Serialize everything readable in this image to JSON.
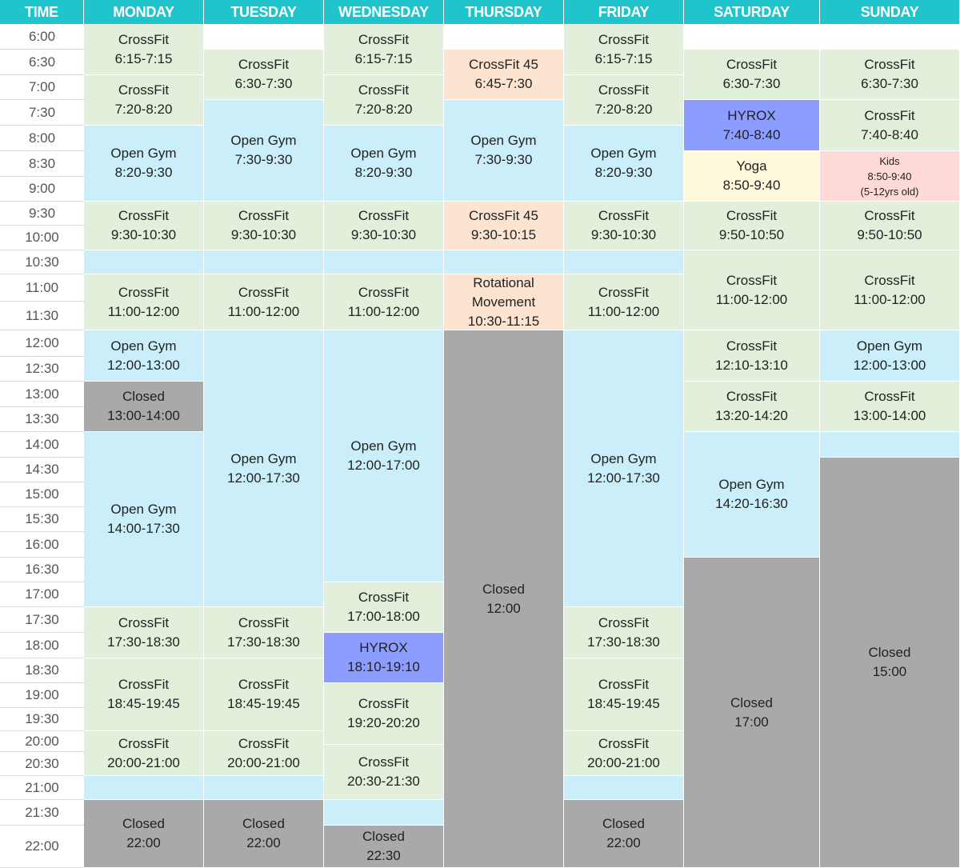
{
  "headers": [
    "TIME",
    "MONDAY",
    "TUESDAY",
    "WEDNESDAY",
    "THURSDAY",
    "FRIDAY",
    "SATURDAY",
    "SUNDAY"
  ],
  "times": [
    "6:00",
    "6:30",
    "7:00",
    "7:30",
    "8:00",
    "8:30",
    "9:00",
    "9:30",
    "10:00",
    "10:30",
    "11:00",
    "11:30",
    "12:00",
    "12:30",
    "13:00",
    "13:30",
    "14:00",
    "14:30",
    "15:00",
    "15:30",
    "16:00",
    "16:30",
    "17:00",
    "17:30",
    "18:00",
    "18:30",
    "19:00",
    "19:30",
    "20:00",
    "20:30",
    "21:00",
    "21:30",
    "22:00"
  ],
  "colors": {
    "header": "#1fc4cc",
    "crossfit": "#e2efda",
    "open_gym": "#cbeefb",
    "crossfit45": "#fce4d0",
    "hyrox": "#8c9cff",
    "yoga": "#fffadc",
    "kids": "#ffd8d8",
    "closed": "#a9a9a9",
    "empty": "#ffffff"
  },
  "days": [
    {
      "day": "MONDAY",
      "blocks": [
        {
          "name": "CrossFit",
          "time": "6:15-7:15",
          "kind": "crossfit",
          "start": "6:00",
          "end": "7:00"
        },
        {
          "name": "CrossFit",
          "time": "7:20-8:20",
          "kind": "crossfit",
          "start": "7:00",
          "end": "8:00"
        },
        {
          "name": "Open Gym",
          "time": "8:20-9:30",
          "kind": "open_gym",
          "start": "8:00",
          "end": "9:30"
        },
        {
          "name": "CrossFit",
          "time": "9:30-10:30",
          "kind": "crossfit",
          "start": "9:30",
          "end": "10:30"
        },
        {
          "name": "",
          "time": "",
          "kind": "open_gym",
          "start": "10:30",
          "end": "11:00"
        },
        {
          "name": "CrossFit",
          "time": "11:00-12:00",
          "kind": "crossfit",
          "start": "11:00",
          "end": "12:00"
        },
        {
          "name": "Open Gym",
          "time": "12:00-13:00",
          "kind": "open_gym",
          "start": "12:00",
          "end": "13:00"
        },
        {
          "name": "Closed",
          "time": "13:00-14:00",
          "kind": "closed",
          "start": "13:00",
          "end": "14:00"
        },
        {
          "name": "Open Gym",
          "time": "14:00-17:30",
          "kind": "open_gym",
          "start": "14:00",
          "end": "17:30"
        },
        {
          "name": "CrossFit",
          "time": "17:30-18:30",
          "kind": "crossfit",
          "start": "17:30",
          "end": "18:30"
        },
        {
          "name": "CrossFit",
          "time": "18:45-19:45",
          "kind": "crossfit",
          "start": "18:30",
          "end": "20:00"
        },
        {
          "name": "CrossFit",
          "time": "20:00-21:00",
          "kind": "crossfit",
          "start": "20:00",
          "end": "21:00"
        },
        {
          "name": "",
          "time": "",
          "kind": "open_gym",
          "start": "21:00",
          "end": "21:30"
        },
        {
          "name": "Closed",
          "time": "22:00",
          "kind": "closed",
          "start": "21:30",
          "end": "end"
        }
      ]
    },
    {
      "day": "TUESDAY",
      "blocks": [
        {
          "name": "",
          "time": "",
          "kind": "empty",
          "start": "6:00",
          "end": "6:30"
        },
        {
          "name": "CrossFit",
          "time": "6:30-7:30",
          "kind": "crossfit",
          "start": "6:30",
          "end": "7:30"
        },
        {
          "name": "Open Gym",
          "time": "7:30-9:30",
          "kind": "open_gym",
          "start": "7:30",
          "end": "9:30"
        },
        {
          "name": "CrossFit",
          "time": "9:30-10:30",
          "kind": "crossfit",
          "start": "9:30",
          "end": "10:30"
        },
        {
          "name": "",
          "time": "",
          "kind": "open_gym",
          "start": "10:30",
          "end": "11:00"
        },
        {
          "name": "CrossFit",
          "time": "11:00-12:00",
          "kind": "crossfit",
          "start": "11:00",
          "end": "12:00"
        },
        {
          "name": "Open Gym",
          "time": "12:00-17:30",
          "kind": "open_gym",
          "start": "12:00",
          "end": "17:30"
        },
        {
          "name": "CrossFit",
          "time": "17:30-18:30",
          "kind": "crossfit",
          "start": "17:30",
          "end": "18:30"
        },
        {
          "name": "CrossFit",
          "time": "18:45-19:45",
          "kind": "crossfit",
          "start": "18:30",
          "end": "20:00"
        },
        {
          "name": "CrossFit",
          "time": "20:00-21:00",
          "kind": "crossfit",
          "start": "20:00",
          "end": "21:00"
        },
        {
          "name": "",
          "time": "",
          "kind": "open_gym",
          "start": "21:00",
          "end": "21:30"
        },
        {
          "name": "Closed",
          "time": "22:00",
          "kind": "closed",
          "start": "21:30",
          "end": "end"
        }
      ]
    },
    {
      "day": "WEDNESDAY",
      "blocks": [
        {
          "name": "CrossFit",
          "time": "6:15-7:15",
          "kind": "crossfit",
          "start": "6:00",
          "end": "7:00"
        },
        {
          "name": "CrossFit",
          "time": "7:20-8:20",
          "kind": "crossfit",
          "start": "7:00",
          "end": "8:00"
        },
        {
          "name": "Open Gym",
          "time": "8:20-9:30",
          "kind": "open_gym",
          "start": "8:00",
          "end": "9:30"
        },
        {
          "name": "CrossFit",
          "time": "9:30-10:30",
          "kind": "crossfit",
          "start": "9:30",
          "end": "10:30"
        },
        {
          "name": "",
          "time": "",
          "kind": "open_gym",
          "start": "10:30",
          "end": "11:00"
        },
        {
          "name": "CrossFit",
          "time": "11:00-12:00",
          "kind": "crossfit",
          "start": "11:00",
          "end": "12:00"
        },
        {
          "name": "Open Gym",
          "time": "12:00-17:00",
          "kind": "open_gym",
          "start": "12:00",
          "end": "17:00"
        },
        {
          "name": "CrossFit",
          "time": "17:00-18:00",
          "kind": "crossfit",
          "start": "17:00",
          "end": "18:00"
        },
        {
          "name": "HYROX",
          "time": "18:10-19:10",
          "kind": "hyrox",
          "start": "18:00",
          "end": "19:00"
        },
        {
          "name": "CrossFit",
          "time": "19:20-20:20",
          "kind": "crossfit",
          "start": "19:00",
          "end": "20:20"
        },
        {
          "name": "CrossFit",
          "time": "20:30-21:30",
          "kind": "crossfit",
          "start": "20:20",
          "end": "21:30"
        },
        {
          "name": "",
          "time": "",
          "kind": "open_gym",
          "start": "21:30",
          "end": "22:00"
        },
        {
          "name": "Closed",
          "time": "22:30",
          "kind": "closed",
          "start": "22:00",
          "end": "end"
        }
      ]
    },
    {
      "day": "THURSDAY",
      "blocks": [
        {
          "name": "",
          "time": "",
          "kind": "empty",
          "start": "6:00",
          "end": "6:30"
        },
        {
          "name": "CrossFit 45",
          "time": "6:45-7:30",
          "kind": "crossfit45",
          "start": "6:30",
          "end": "7:30"
        },
        {
          "name": "Open Gym",
          "time": "7:30-9:30",
          "kind": "open_gym",
          "start": "7:30",
          "end": "9:30"
        },
        {
          "name": "CrossFit 45",
          "time": "9:30-10:15",
          "kind": "crossfit45",
          "start": "9:30",
          "end": "10:30"
        },
        {
          "name": "",
          "time": "",
          "kind": "open_gym",
          "start": "10:30",
          "end": "11:00"
        },
        {
          "name": "Rotational",
          "name2": "Movement",
          "time": "10:30-11:15",
          "kind": "crossfit45",
          "start": "11:00",
          "end": "12:00"
        },
        {
          "name": "Closed",
          "time": "12:00",
          "kind": "closed",
          "start": "12:00",
          "end": "end"
        }
      ]
    },
    {
      "day": "FRIDAY",
      "blocks": [
        {
          "name": "CrossFit",
          "time": "6:15-7:15",
          "kind": "crossfit",
          "start": "6:00",
          "end": "7:00"
        },
        {
          "name": "CrossFit",
          "time": "7:20-8:20",
          "kind": "crossfit",
          "start": "7:00",
          "end": "8:00"
        },
        {
          "name": "Open Gym",
          "time": "8:20-9:30",
          "kind": "open_gym",
          "start": "8:00",
          "end": "9:30"
        },
        {
          "name": "CrossFit",
          "time": "9:30-10:30",
          "kind": "crossfit",
          "start": "9:30",
          "end": "10:30"
        },
        {
          "name": "",
          "time": "",
          "kind": "open_gym",
          "start": "10:30",
          "end": "11:00"
        },
        {
          "name": "CrossFit",
          "time": "11:00-12:00",
          "kind": "crossfit",
          "start": "11:00",
          "end": "12:00"
        },
        {
          "name": "Open Gym",
          "time": "12:00-17:30",
          "kind": "open_gym",
          "start": "12:00",
          "end": "17:30"
        },
        {
          "name": "CrossFit",
          "time": "17:30-18:30",
          "kind": "crossfit",
          "start": "17:30",
          "end": "18:30"
        },
        {
          "name": "CrossFit",
          "time": "18:45-19:45",
          "kind": "crossfit",
          "start": "18:30",
          "end": "20:00"
        },
        {
          "name": "CrossFit",
          "time": "20:00-21:00",
          "kind": "crossfit",
          "start": "20:00",
          "end": "21:00"
        },
        {
          "name": "",
          "time": "",
          "kind": "open_gym",
          "start": "21:00",
          "end": "21:30"
        },
        {
          "name": "Closed",
          "time": "22:00",
          "kind": "closed",
          "start": "21:30",
          "end": "end"
        }
      ]
    },
    {
      "day": "SATURDAY",
      "blocks": [
        {
          "name": "",
          "time": "",
          "kind": "empty",
          "start": "6:00",
          "end": "6:30"
        },
        {
          "name": "CrossFit",
          "time": "6:30-7:30",
          "kind": "crossfit",
          "start": "6:30",
          "end": "7:30"
        },
        {
          "name": "HYROX",
          "time": "7:40-8:40",
          "kind": "hyrox",
          "start": "7:30",
          "end": "8:30"
        },
        {
          "name": "Yoga",
          "time": "8:50-9:40",
          "kind": "yoga",
          "start": "8:30",
          "end": "9:30"
        },
        {
          "name": "CrossFit",
          "time": "9:50-10:50",
          "kind": "crossfit",
          "start": "9:30",
          "end": "10:30"
        },
        {
          "name": "CrossFit",
          "time": "11:00-12:00",
          "kind": "crossfit",
          "start": "10:30",
          "end": "12:00"
        },
        {
          "name": "CrossFit",
          "time": "12:10-13:10",
          "kind": "crossfit",
          "start": "12:00",
          "end": "13:00"
        },
        {
          "name": "CrossFit",
          "time": "13:20-14:20",
          "kind": "crossfit",
          "start": "13:00",
          "end": "14:00"
        },
        {
          "name": "Open Gym",
          "time": "14:20-16:30",
          "kind": "open_gym",
          "start": "14:00",
          "end": "16:30"
        },
        {
          "name": "Closed",
          "time": "17:00",
          "kind": "closed",
          "start": "16:30",
          "end": "end"
        }
      ]
    },
    {
      "day": "SUNDAY",
      "blocks": [
        {
          "name": "",
          "time": "",
          "kind": "empty",
          "start": "6:00",
          "end": "6:30"
        },
        {
          "name": "CrossFit",
          "time": "6:30-7:30",
          "kind": "crossfit",
          "start": "6:30",
          "end": "7:30"
        },
        {
          "name": "CrossFit",
          "time": "7:40-8:40",
          "kind": "crossfit",
          "start": "7:30",
          "end": "8:30"
        },
        {
          "name": "Kids",
          "time": "8:50-9:40",
          "note": "(5-12yrs old)",
          "kind": "kids",
          "start": "8:30",
          "end": "9:30"
        },
        {
          "name": "CrossFit",
          "time": "9:50-10:50",
          "kind": "crossfit",
          "start": "9:30",
          "end": "10:30"
        },
        {
          "name": "CrossFit",
          "time": "11:00-12:00",
          "kind": "crossfit",
          "start": "10:30",
          "end": "12:00"
        },
        {
          "name": "Open Gym",
          "time": "12:00-13:00",
          "kind": "open_gym",
          "start": "12:00",
          "end": "13:00"
        },
        {
          "name": "CrossFit",
          "time": "13:00-14:00",
          "kind": "crossfit",
          "start": "13:00",
          "end": "14:00"
        },
        {
          "name": "",
          "time": "",
          "kind": "open_gym",
          "start": "14:00",
          "end": "14:30"
        },
        {
          "name": "Closed",
          "time": "15:00",
          "kind": "closed",
          "start": "14:30",
          "end": "end"
        }
      ]
    }
  ]
}
